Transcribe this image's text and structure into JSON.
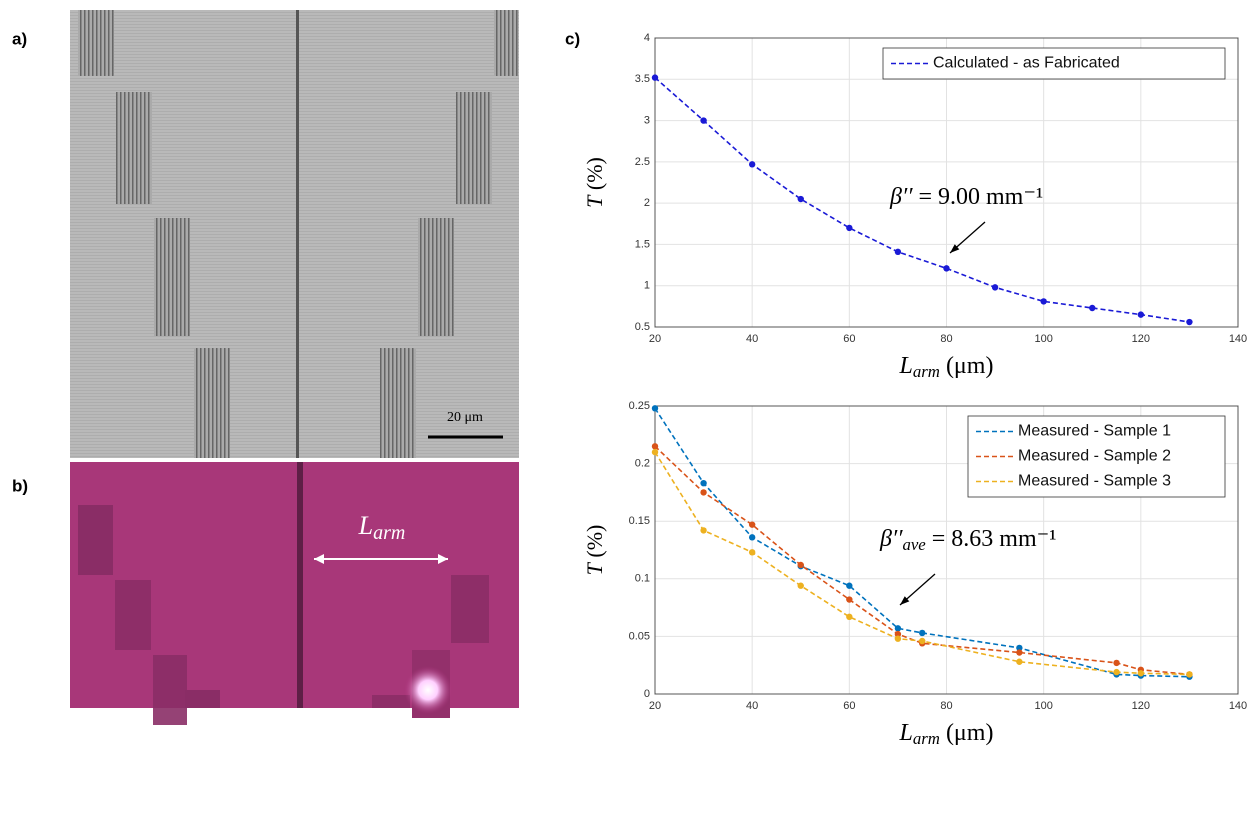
{
  "panels": {
    "a": "a)",
    "b": "b)",
    "c": "c)"
  },
  "scale_bar": "20 μm",
  "image_label": {
    "main": "L",
    "sub": "arm"
  },
  "chart_data": [
    {
      "type": "line",
      "x": [
        20,
        30,
        40,
        50,
        60,
        70,
        80,
        90,
        100,
        110,
        120,
        130
      ],
      "series": [
        {
          "name": "Calculated - as Fabricated",
          "color": "#1a1ad6",
          "values": [
            3.52,
            3.0,
            2.47,
            2.05,
            1.7,
            1.41,
            1.21,
            0.98,
            0.81,
            0.73,
            0.65,
            0.56
          ]
        }
      ],
      "xlim": [
        20,
        140
      ],
      "xticks": [
        20,
        40,
        60,
        80,
        100,
        120,
        140
      ],
      "ylim": [
        0.5,
        4
      ],
      "yticks": [
        0.5,
        1,
        1.5,
        2,
        2.5,
        3,
        3.5,
        4
      ],
      "xlabel": {
        "main": "L",
        "sub": "arm",
        "rest": " (μm)"
      },
      "ylabel": {
        "main": "T",
        "rest": " (%)"
      },
      "annotation": {
        "main": "β′′",
        "rest": " = 9.00 mm⁻¹"
      },
      "grid": true,
      "legend": "northeast"
    },
    {
      "type": "line",
      "x": [
        20,
        30,
        40,
        50,
        60,
        70,
        75,
        95,
        115,
        120,
        130
      ],
      "series": [
        {
          "name": "Measured - Sample 1",
          "color": "#0072bd",
          "values": [
            0.248,
            0.183,
            0.136,
            0.111,
            0.094,
            0.057,
            0.053,
            0.04,
            0.017,
            0.016,
            0.015
          ]
        },
        {
          "name": "Measured - Sample 2",
          "color": "#d95319",
          "values": [
            0.215,
            0.175,
            0.147,
            0.112,
            0.082,
            0.052,
            0.044,
            0.036,
            0.027,
            0.021,
            0.017
          ]
        },
        {
          "name": "Measured - Sample 3",
          "color": "#edb120",
          "values": [
            0.21,
            0.142,
            0.123,
            0.094,
            0.067,
            0.048,
            0.046,
            0.028,
            0.019,
            0.018,
            0.017
          ]
        }
      ],
      "xlim": [
        20,
        140
      ],
      "xticks": [
        20,
        40,
        60,
        80,
        100,
        120,
        140
      ],
      "ylim": [
        0,
        0.25
      ],
      "yticks": [
        0,
        0.05,
        0.1,
        0.15,
        0.2,
        0.25
      ],
      "xlabel": {
        "main": "L",
        "sub": "arm",
        "rest": " (μm)"
      },
      "ylabel": {
        "main": "T",
        "rest": " (%)"
      },
      "annotation": {
        "main": "β′′",
        "sub": "ave",
        "rest": " = 8.63 mm⁻¹"
      },
      "grid": true,
      "legend": "northeast"
    }
  ]
}
